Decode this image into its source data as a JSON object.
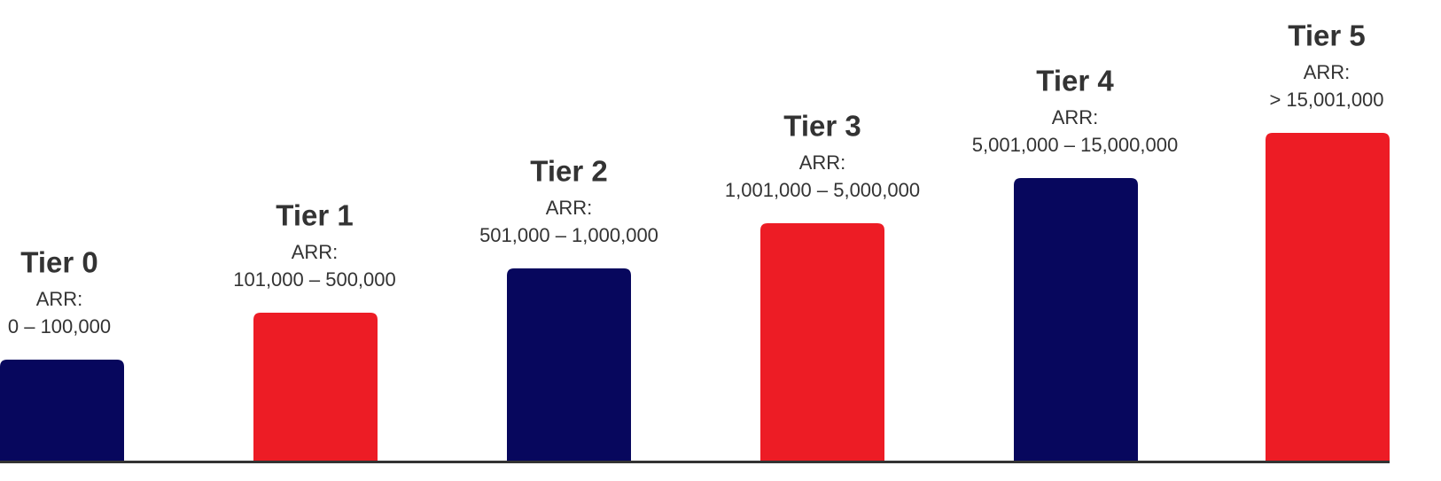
{
  "tiers": [
    {
      "title": "Tier 0",
      "label": "ARR:",
      "range": "0 – 100,000"
    },
    {
      "title": "Tier 1",
      "label": "ARR:",
      "range": "101,000 – 500,000"
    },
    {
      "title": "Tier 2",
      "label": "ARR:",
      "range": "501,000 – 1,000,000"
    },
    {
      "title": "Tier 3",
      "label": "ARR:",
      "range": "1,001,000 – 5,000,000"
    },
    {
      "title": "Tier 4",
      "label": "ARR:",
      "range": "5,001,000 – 15,000,000"
    },
    {
      "title": "Tier 5",
      "label": "ARR:",
      "range": "> 15,001,000"
    }
  ]
}
